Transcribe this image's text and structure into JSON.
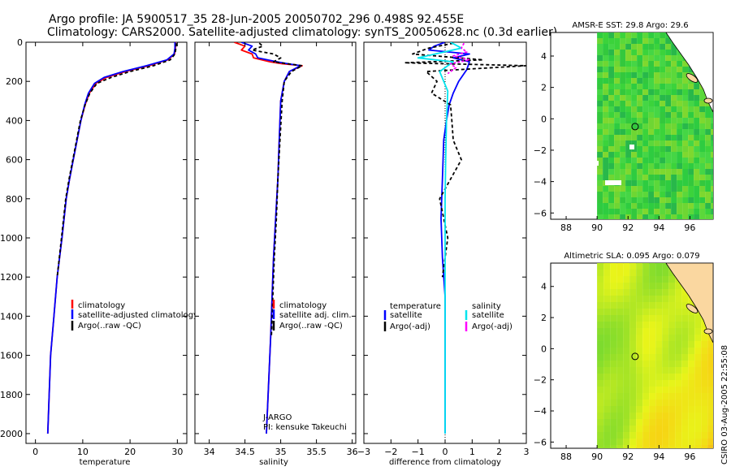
{
  "figure": {
    "title_line1": "Argo profile: JA 5900517_35 28-Jun-2005 20050702_296 0.498S 92.455E",
    "title_line2": "Climatology: CARS2000. Satellite-adjusted climatology: synTS_20050628.nc (0.3d earlier)",
    "stamp": "CSIRO 03-Aug-2005 22:55:08"
  },
  "colors": {
    "climatology": "#ff0000",
    "satellite": "#0000ff",
    "argo": "#000000",
    "salinity_satellite": "#00e5ee",
    "salinity_argo": "#ff00ff",
    "land": "#fad7a0",
    "sst_green": "#2ccd3a",
    "sla_yellow": "#e8f51a"
  },
  "chart_data": [
    {
      "type": "line",
      "id": "temperature",
      "xlabel": "temperature",
      "ylabel": "",
      "xlim": [
        -2,
        32
      ],
      "ylim": [
        2050,
        0
      ],
      "xticks": [
        0,
        10,
        20,
        30
      ],
      "yticks": [
        0,
        200,
        400,
        600,
        800,
        1000,
        1200,
        1400,
        1600,
        1800,
        2000
      ],
      "legend": [
        "climatology",
        "satellite-adjusted climatology",
        "Argo(..raw -QC)"
      ],
      "series": [
        {
          "name": "climatology",
          "color": "climatology",
          "dash": "",
          "x": [
            29.6,
            29.6,
            29.4,
            28.0,
            24.0,
            19.0,
            15.0,
            12.8,
            11.4,
            10.5,
            9.6,
            8.8,
            8.0,
            7.2,
            6.5,
            5.6,
            4.6,
            3.9,
            3.2,
            2.6
          ],
          "y": [
            0,
            30,
            60,
            90,
            120,
            150,
            180,
            210,
            260,
            320,
            400,
            500,
            600,
            700,
            800,
            1000,
            1200,
            1400,
            1600,
            2000
          ]
        },
        {
          "name": "satellite-adjusted climatology",
          "color": "satellite",
          "dash": "",
          "x": [
            29.5,
            29.5,
            29.3,
            27.8,
            23.5,
            18.5,
            14.5,
            12.5,
            11.2,
            10.4,
            9.6,
            8.8,
            8.0,
            7.2,
            6.5,
            5.6,
            4.6,
            3.9,
            3.2,
            2.6
          ],
          "y": [
            0,
            30,
            60,
            90,
            120,
            150,
            180,
            210,
            260,
            320,
            400,
            500,
            600,
            700,
            800,
            1000,
            1200,
            1400,
            1600,
            2000
          ]
        },
        {
          "name": "Argo(..raw -QC)",
          "color": "argo",
          "dash": "4,3",
          "x": [
            29.8,
            29.7,
            29.5,
            28.5,
            25.0,
            20.0,
            16.0,
            13.0,
            11.5,
            10.5,
            9.5,
            8.7,
            7.9,
            7.1,
            6.4,
            5.5,
            4.6
          ],
          "y": [
            5,
            30,
            60,
            90,
            120,
            150,
            180,
            210,
            260,
            320,
            400,
            500,
            600,
            700,
            800,
            1000,
            1200
          ]
        }
      ]
    },
    {
      "type": "line",
      "id": "salinity",
      "xlabel": "salinity",
      "ylabel": "",
      "xlim": [
        33.8,
        36.05
      ],
      "ylim": [
        2050,
        0
      ],
      "xticks": [
        34,
        34.5,
        35,
        35.5,
        36
      ],
      "yticks": [
        0,
        200,
        400,
        600,
        800,
        1000,
        1200,
        1400,
        1600,
        1800,
        2000
      ],
      "legend": [
        "climatology",
        "satellite adj. clim.",
        "Argo(..raw -QC)"
      ],
      "annotations": [
        "J-ARGO",
        "PI: kensuke Takeuchi"
      ],
      "series": [
        {
          "name": "climatology",
          "color": "climatology",
          "dash": "",
          "x": [
            34.35,
            34.5,
            34.45,
            34.6,
            34.62,
            34.85,
            35.02,
            35.3,
            35.12,
            35.05,
            35.0,
            34.98,
            34.96,
            34.93,
            34.9,
            34.88,
            34.86,
            34.8
          ],
          "y": [
            0,
            20,
            40,
            60,
            80,
            100,
            110,
            120,
            150,
            200,
            300,
            500,
            700,
            900,
            1100,
            1300,
            1500,
            2000
          ]
        },
        {
          "name": "satellite adj. clim.",
          "color": "satellite",
          "dash": "",
          "x": [
            34.45,
            34.6,
            34.55,
            34.65,
            34.68,
            34.95,
            35.1,
            35.28,
            35.12,
            35.05,
            35.0,
            34.98,
            34.96,
            34.93,
            34.9,
            34.88,
            34.86,
            34.8
          ],
          "y": [
            0,
            20,
            40,
            60,
            80,
            100,
            110,
            120,
            150,
            200,
            300,
            500,
            700,
            900,
            1100,
            1300,
            1500,
            2000
          ]
        },
        {
          "name": "Argo(..raw -QC)",
          "color": "argo",
          "dash": "4,3",
          "x": [
            34.7,
            34.75,
            34.6,
            34.9,
            35.0,
            34.9,
            35.1,
            35.3,
            35.15,
            35.05,
            35.02,
            34.99,
            34.96,
            34.94,
            34.91,
            34.89,
            34.87
          ],
          "y": [
            5,
            20,
            40,
            60,
            80,
            100,
            110,
            120,
            150,
            200,
            300,
            500,
            700,
            900,
            1100,
            1300,
            1500
          ]
        }
      ]
    },
    {
      "type": "line",
      "id": "difference",
      "xlabel": "difference from climatology",
      "ylabel": "",
      "xlim": [
        -3,
        3
      ],
      "ylim": [
        2050,
        0
      ],
      "xticks": [
        -3,
        -2,
        -1,
        0,
        1,
        2,
        3
      ],
      "yticks": [
        0,
        200,
        400,
        600,
        800,
        1000,
        1200,
        1400,
        1600,
        1800,
        2000
      ],
      "legend_left_title": "temperature",
      "legend_left": [
        "satellite",
        "Argo(-adj)"
      ],
      "legend_right_title": "salinity",
      "legend_right": [
        "satellite",
        "Argo(-adj)"
      ],
      "series": [
        {
          "name": "temperature satellite",
          "color": "satellite",
          "dash": "",
          "x": [
            0,
            -0.4,
            -0.6,
            0.9,
            0.3,
            0.9,
            0.8,
            0.5,
            0.3,
            0.15,
            0.05,
            -0.05,
            -0.1,
            -0.15,
            -0.1,
            0,
            0,
            0,
            0
          ],
          "y": [
            0,
            20,
            40,
            60,
            80,
            100,
            140,
            200,
            260,
            320,
            400,
            500,
            700,
            900,
            1100,
            1300,
            1500,
            1800,
            2000
          ]
        },
        {
          "name": "temperature Argo(-adj)",
          "color": "argo",
          "dash": "4,3",
          "x": [
            0.3,
            -0.6,
            -1.2,
            1.4,
            -1.5,
            3.0,
            -0.7,
            -0.3,
            -0.5,
            0.2,
            0.25,
            0.3,
            0.6,
            -0.2,
            0.1,
            -0.1
          ],
          "y": [
            5,
            30,
            60,
            90,
            105,
            120,
            150,
            200,
            260,
            320,
            400,
            500,
            600,
            800,
            1000,
            1200
          ]
        },
        {
          "name": "salinity satellite",
          "color": "salinity_satellite",
          "dash": "",
          "x": [
            0.2,
            0.6,
            -1.0,
            0.3,
            -0.2,
            0.1,
            0.05,
            0.02,
            0.0,
            0.0,
            0.0,
            0.0,
            0.0,
            0.0
          ],
          "y": [
            0,
            30,
            80,
            100,
            150,
            250,
            400,
            600,
            800,
            1000,
            1200,
            1400,
            1600,
            2000
          ]
        },
        {
          "name": "salinity Argo(-adj)",
          "color": "salinity_argo",
          "dash": "3,2",
          "x": [
            0.7,
            0.6,
            0.8,
            0.3,
            0.9,
            0.2,
            0.4,
            0.1
          ],
          "y": [
            5,
            30,
            50,
            70,
            90,
            110,
            130,
            160
          ]
        }
      ]
    },
    {
      "type": "heatmap",
      "id": "sst_map",
      "title": "AMSR-E SST: 29.8 Argo: 29.6",
      "xlim": [
        87,
        97.5
      ],
      "ylim": [
        -6.4,
        5.5
      ],
      "xticks": [
        88,
        90,
        92,
        94,
        96
      ],
      "yticks": [
        -6,
        -4,
        -2,
        0,
        2,
        4
      ],
      "argo_position": {
        "lon": 92.455,
        "lat": -0.498
      }
    },
    {
      "type": "heatmap",
      "id": "sla_map",
      "title": "Altimetric SLA: 0.095 Argo: 0.079",
      "xlim": [
        87,
        97.5
      ],
      "ylim": [
        -6.4,
        5.5
      ],
      "xticks": [
        88,
        90,
        92,
        94,
        96
      ],
      "yticks": [
        -6,
        -4,
        -2,
        0,
        2,
        4
      ],
      "argo_position": {
        "lon": 92.455,
        "lat": -0.498
      }
    }
  ]
}
